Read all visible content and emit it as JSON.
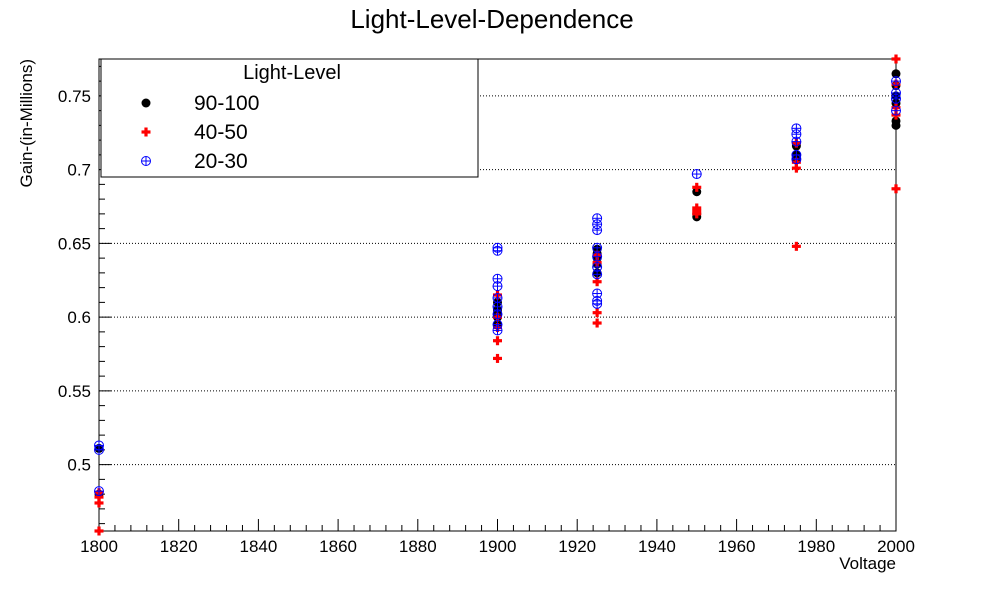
{
  "chart_data": {
    "type": "scatter",
    "title": "Light-Level-Dependence",
    "xlabel": "Voltage",
    "ylabel": "Gain-(in-Millions)",
    "xlim": [
      1800,
      2000
    ],
    "ylim": [
      0.455,
      0.775
    ],
    "xticks": [
      1800,
      1820,
      1840,
      1860,
      1880,
      1900,
      1920,
      1940,
      1960,
      1980,
      2000
    ],
    "yticks": [
      0.5,
      0.55,
      0.6,
      0.65,
      0.7,
      0.75
    ],
    "ytick_labels": [
      "0.5",
      "0.55",
      "0.6",
      "0.65",
      "0.7",
      "0.75"
    ],
    "grid": "horizontal dotted",
    "legend": {
      "title": "Light-Level",
      "placement": "top-left"
    },
    "series": [
      {
        "name": "90-100",
        "marker": "filled-circle",
        "color": "#000000",
        "x": [
          1800,
          1800,
          1900,
          1900,
          1900,
          1900,
          1900,
          1925,
          1925,
          1925,
          1925,
          1925,
          1950,
          1950,
          1950,
          1975,
          1975,
          1975,
          2000,
          2000,
          2000,
          2000,
          2000,
          2000
        ],
        "y": [
          0.511,
          0.48,
          0.595,
          0.6,
          0.603,
          0.605,
          0.61,
          0.63,
          0.636,
          0.64,
          0.643,
          0.646,
          0.668,
          0.67,
          0.685,
          0.707,
          0.71,
          0.716,
          0.73,
          0.733,
          0.745,
          0.75,
          0.757,
          0.765
        ]
      },
      {
        "name": "40-50",
        "marker": "plus",
        "color": "#ff0000",
        "x": [
          1800,
          1800,
          1800,
          1800,
          1900,
          1900,
          1900,
          1900,
          1900,
          1925,
          1925,
          1925,
          1925,
          1925,
          1950,
          1950,
          1950,
          1950,
          1975,
          1975,
          1975,
          1975,
          2000,
          2000,
          2000,
          2000,
          2000
        ],
        "y": [
          0.455,
          0.474,
          0.478,
          0.481,
          0.572,
          0.584,
          0.593,
          0.6,
          0.615,
          0.596,
          0.603,
          0.624,
          0.637,
          0.642,
          0.67,
          0.672,
          0.674,
          0.688,
          0.648,
          0.701,
          0.705,
          0.718,
          0.687,
          0.737,
          0.742,
          0.758,
          0.775
        ]
      },
      {
        "name": "20-30",
        "marker": "open-circle-plus",
        "color": "#0000ff",
        "x": [
          1800,
          1800,
          1800,
          1900,
          1900,
          1900,
          1900,
          1900,
          1900,
          1900,
          1900,
          1900,
          1925,
          1925,
          1925,
          1925,
          1925,
          1925,
          1925,
          1925,
          1925,
          1925,
          1950,
          1975,
          1975,
          1975,
          1975,
          1975,
          2000,
          2000,
          2000,
          2000
        ],
        "y": [
          0.51,
          0.513,
          0.482,
          0.591,
          0.595,
          0.602,
          0.607,
          0.613,
          0.621,
          0.626,
          0.645,
          0.647,
          0.609,
          0.611,
          0.616,
          0.629,
          0.634,
          0.641,
          0.659,
          0.663,
          0.667,
          0.647,
          0.697,
          0.707,
          0.719,
          0.724,
          0.728,
          0.71,
          0.74,
          0.748,
          0.752,
          0.76
        ]
      }
    ]
  }
}
